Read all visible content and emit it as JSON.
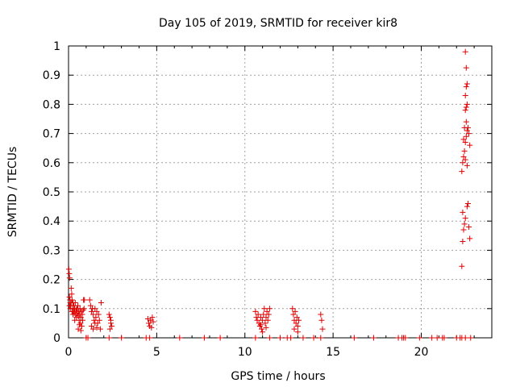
{
  "chart_data": {
    "type": "scatter",
    "title": "Day 105 of 2019, SRMTID for receiver kir8",
    "xlabel": "GPS time / hours",
    "ylabel": "SRMTID / TECUs",
    "xlim": [
      0,
      24
    ],
    "ylim": [
      0,
      1
    ],
    "grid": true,
    "marker": "+",
    "xticks": [
      0,
      5,
      10,
      15,
      20
    ],
    "yticks": [
      0,
      0.1,
      0.2,
      0.3,
      0.4,
      0.5,
      0.6,
      0.7,
      0.8,
      0.9,
      1
    ],
    "xtick_labels": [
      "0",
      "5",
      "10",
      "15",
      "20"
    ],
    "ytick_labels": [
      "0",
      "0.1",
      "0.2",
      "0.3",
      "0.4",
      "0.5",
      "0.6",
      "0.7",
      "0.8",
      "0.9",
      "1"
    ],
    "series": [
      {
        "name": "kir8",
        "color": "#e00000",
        "points": [
          [
            0.02,
            0.235
          ],
          [
            0.04,
            0.22
          ],
          [
            0.06,
            0.205
          ],
          [
            0.05,
            0.14
          ],
          [
            0.08,
            0.13
          ],
          [
            0.1,
            0.12
          ],
          [
            0.12,
            0.11
          ],
          [
            0.15,
            0.17
          ],
          [
            0.18,
            0.15
          ],
          [
            0.2,
            0.13
          ],
          [
            0.22,
            0.1
          ],
          [
            0.25,
            0.12
          ],
          [
            0.28,
            0.09
          ],
          [
            0.3,
            0.11
          ],
          [
            0.33,
            0.085
          ],
          [
            0.35,
            0.1
          ],
          [
            0.38,
            0.12
          ],
          [
            0.4,
            0.08
          ],
          [
            0.43,
            0.095
          ],
          [
            0.45,
            0.07
          ],
          [
            0.48,
            0.1
          ],
          [
            0.5,
            0.085
          ],
          [
            0.53,
            0.11
          ],
          [
            0.55,
            0.075
          ],
          [
            0.58,
            0.09
          ],
          [
            0.6,
            0.06
          ],
          [
            0.63,
            0.08
          ],
          [
            0.65,
            0.1
          ],
          [
            0.68,
            0.05
          ],
          [
            0.7,
            0.07
          ],
          [
            0.72,
            0.09
          ],
          [
            0.75,
            0.04
          ],
          [
            0.78,
            0.08
          ],
          [
            0.8,
            0.06
          ],
          [
            0.83,
            0.095
          ],
          [
            0.85,
            0.13
          ],
          [
            0.88,
            0.1
          ],
          [
            0.9,
            0.13
          ],
          [
            0.55,
            0.03
          ],
          [
            0.62,
            0.045
          ],
          [
            0.7,
            0.025
          ],
          [
            0.05,
            0.11
          ],
          [
            0.1,
            0.1
          ],
          [
            0.15,
            0.12
          ],
          [
            0.2,
            0.09
          ],
          [
            0.25,
            0.08
          ],
          [
            0.3,
            0.1
          ],
          [
            0.35,
            0.06
          ],
          [
            1.2,
            0.13
          ],
          [
            1.25,
            0.11
          ],
          [
            1.3,
            0.09
          ],
          [
            1.35,
            0.1
          ],
          [
            1.4,
            0.08
          ],
          [
            1.45,
            0.06
          ],
          [
            1.5,
            0.1
          ],
          [
            1.55,
            0.07
          ],
          [
            1.6,
            0.09
          ],
          [
            1.65,
            0.05
          ],
          [
            1.7,
            0.08
          ],
          [
            1.75,
            0.06
          ],
          [
            1.8,
            0.03
          ],
          [
            1.85,
            0.12
          ],
          [
            1.3,
            0.04
          ],
          [
            1.4,
            0.03
          ],
          [
            1.5,
            0.05
          ],
          [
            1.6,
            0.035
          ],
          [
            2.3,
            0.08
          ],
          [
            2.35,
            0.07
          ],
          [
            2.4,
            0.05
          ],
          [
            2.45,
            0.04
          ],
          [
            2.35,
            0.03
          ],
          [
            2.4,
            0.06
          ],
          [
            4.5,
            0.065
          ],
          [
            4.55,
            0.05
          ],
          [
            4.6,
            0.04
          ],
          [
            4.65,
            0.06
          ],
          [
            4.7,
            0.035
          ],
          [
            4.75,
            0.07
          ],
          [
            4.8,
            0.055
          ],
          [
            10.6,
            0.09
          ],
          [
            10.65,
            0.07
          ],
          [
            10.7,
            0.06
          ],
          [
            10.75,
            0.08
          ],
          [
            10.8,
            0.05
          ],
          [
            10.85,
            0.04
          ],
          [
            10.9,
            0.07
          ],
          [
            10.95,
            0.03
          ],
          [
            11.0,
            0.06
          ],
          [
            11.05,
            0.08
          ],
          [
            11.1,
            0.1
          ],
          [
            11.15,
            0.05
          ],
          [
            11.2,
            0.07
          ],
          [
            11.25,
            0.09
          ],
          [
            11.3,
            0.06
          ],
          [
            11.35,
            0.08
          ],
          [
            11.4,
            0.1
          ],
          [
            11.0,
            0.02
          ],
          [
            10.9,
            0.045
          ],
          [
            11.2,
            0.035
          ],
          [
            12.7,
            0.1
          ],
          [
            12.75,
            0.08
          ],
          [
            12.8,
            0.06
          ],
          [
            12.85,
            0.09
          ],
          [
            12.9,
            0.05
          ],
          [
            12.95,
            0.07
          ],
          [
            13.0,
            0.04
          ],
          [
            13.05,
            0.06
          ],
          [
            12.8,
            0.03
          ],
          [
            13.0,
            0.02
          ],
          [
            14.3,
            0.08
          ],
          [
            14.35,
            0.06
          ],
          [
            14.4,
            0.03
          ],
          [
            22.3,
            0.245
          ],
          [
            22.35,
            0.33
          ],
          [
            22.4,
            0.37
          ],
          [
            22.45,
            0.39
          ],
          [
            22.5,
            0.41
          ],
          [
            22.35,
            0.43
          ],
          [
            22.6,
            0.45
          ],
          [
            22.65,
            0.46
          ],
          [
            22.7,
            0.38
          ],
          [
            22.75,
            0.34
          ],
          [
            22.3,
            0.57
          ],
          [
            22.35,
            0.6
          ],
          [
            22.4,
            0.62
          ],
          [
            22.45,
            0.64
          ],
          [
            22.5,
            0.67
          ],
          [
            22.55,
            0.69
          ],
          [
            22.6,
            0.71
          ],
          [
            22.65,
            0.72
          ],
          [
            22.7,
            0.7
          ],
          [
            22.75,
            0.66
          ],
          [
            22.4,
            0.68
          ],
          [
            22.5,
            0.61
          ],
          [
            22.6,
            0.59
          ],
          [
            22.45,
            0.72
          ],
          [
            22.55,
            0.74
          ],
          [
            22.5,
            0.78
          ],
          [
            22.55,
            0.79
          ],
          [
            22.6,
            0.8
          ],
          [
            22.5,
            0.83
          ],
          [
            22.55,
            0.86
          ],
          [
            22.6,
            0.87
          ],
          [
            22.55,
            0.925
          ],
          [
            22.5,
            0.98
          ],
          [
            1.0,
            0
          ],
          [
            1.1,
            0
          ],
          [
            2.3,
            0
          ],
          [
            3.0,
            0
          ],
          [
            4.4,
            0
          ],
          [
            4.6,
            0
          ],
          [
            6.3,
            0
          ],
          [
            7.7,
            0
          ],
          [
            8.6,
            0
          ],
          [
            10.6,
            0
          ],
          [
            11.4,
            0
          ],
          [
            12.0,
            0
          ],
          [
            12.4,
            0
          ],
          [
            12.6,
            0
          ],
          [
            13.3,
            0
          ],
          [
            13.9,
            0
          ],
          [
            14.3,
            0
          ],
          [
            16.2,
            0
          ],
          [
            17.3,
            0
          ],
          [
            18.7,
            0
          ],
          [
            18.9,
            0
          ],
          [
            19.0,
            0
          ],
          [
            19.1,
            0
          ],
          [
            19.9,
            0
          ],
          [
            20.6,
            0
          ],
          [
            20.9,
            0
          ],
          [
            21.2,
            0
          ],
          [
            21.3,
            0
          ],
          [
            22.0,
            0
          ],
          [
            22.2,
            0
          ],
          [
            22.3,
            0
          ],
          [
            22.5,
            0
          ],
          [
            22.8,
            0
          ]
        ]
      }
    ]
  }
}
